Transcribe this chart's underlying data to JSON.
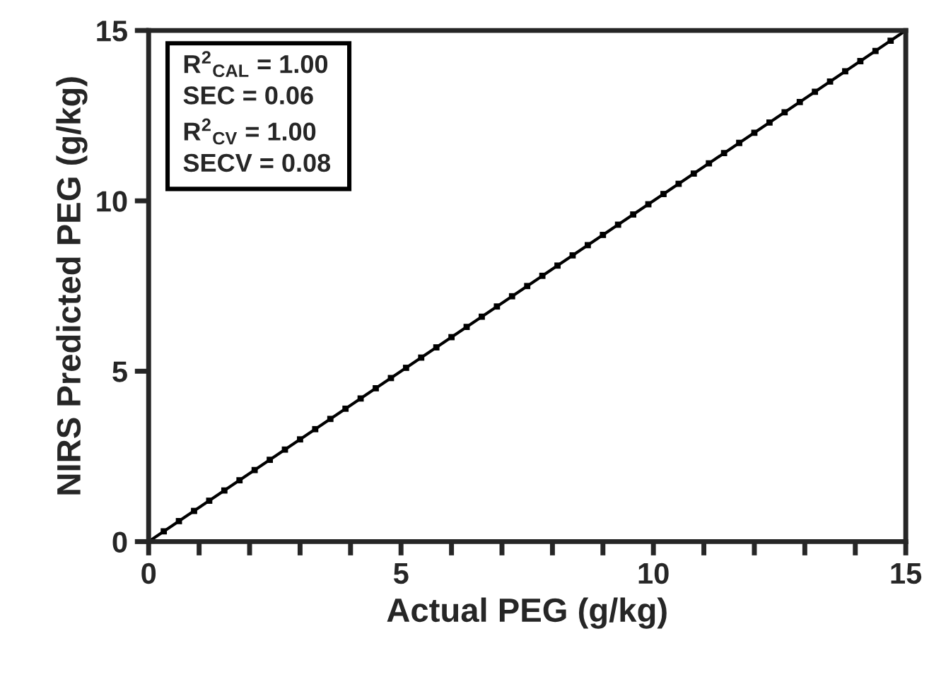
{
  "chart_data": {
    "type": "scatter",
    "xlabel": "Actual PEG (g/kg)",
    "ylabel": "NIRS Predicted PEG (g/kg)",
    "annotations": [
      "R$^{2}$$_{CAL}$ = 1.00",
      "SEC = 0.06",
      "R$^{2}$$_{CV}$ = 1.00",
      "SECV = 0.08"
    ],
    "xlim": [
      0,
      15
    ],
    "ylim": [
      0,
      15
    ],
    "xticks": [
      0,
      {
        "value": 1,
        "label": null
      },
      {
        "value": 2,
        "label": null
      },
      {
        "value": 3,
        "label": null
      },
      {
        "value": 4,
        "label": null
      },
      5,
      {
        "value": 6,
        "label": null
      },
      {
        "value": 7,
        "label": null
      },
      {
        "value": 8,
        "label": null
      },
      {
        "value": 9,
        "label": null
      },
      10,
      {
        "value": 11,
        "label": null
      },
      {
        "value": 12,
        "label": null
      },
      {
        "value": 13,
        "label": null
      },
      {
        "value": 14,
        "label": null
      },
      15
    ],
    "yticks": [
      0,
      5,
      10,
      15
    ],
    "grid": false,
    "legend": false,
    "series": [
      {
        "marker": "square",
        "color": "#000000",
        "x": [
          0.3,
          0.6,
          0.9,
          1.2,
          1.5,
          1.8,
          2.1,
          2.4,
          2.7,
          3.0,
          3.3,
          3.6,
          3.9,
          4.2,
          4.5,
          4.8,
          5.1,
          5.4,
          5.7,
          6.0,
          6.3,
          6.6,
          6.9,
          7.2,
          7.5,
          7.8,
          8.1,
          8.4,
          8.7,
          9.0,
          9.3,
          9.6,
          9.9,
          10.2,
          10.5,
          10.8,
          11.1,
          11.4,
          11.7,
          12.0,
          12.3,
          12.6,
          12.9,
          13.2,
          13.5,
          13.8,
          14.1,
          14.4,
          14.7
        ],
        "values": [
          0.3,
          0.6,
          0.9,
          1.2,
          1.5,
          1.8,
          2.1,
          2.4,
          2.7,
          3.0,
          3.3,
          3.6,
          3.9,
          4.2,
          4.5,
          4.8,
          5.1,
          5.4,
          5.7,
          6.0,
          6.3,
          6.6,
          6.9,
          7.2,
          7.5,
          7.8,
          8.1,
          8.4,
          8.7,
          9.0,
          9.3,
          9.6,
          9.9,
          10.2,
          10.5,
          10.8,
          11.1,
          11.4,
          11.7,
          12.0,
          12.3,
          12.6,
          12.9,
          13.2,
          13.5,
          13.8,
          14.1,
          14.4,
          14.7
        ]
      },
      {
        "type": "line",
        "color": "#000000",
        "x": [
          0,
          15
        ],
        "values": [
          0,
          15
        ]
      }
    ]
  }
}
